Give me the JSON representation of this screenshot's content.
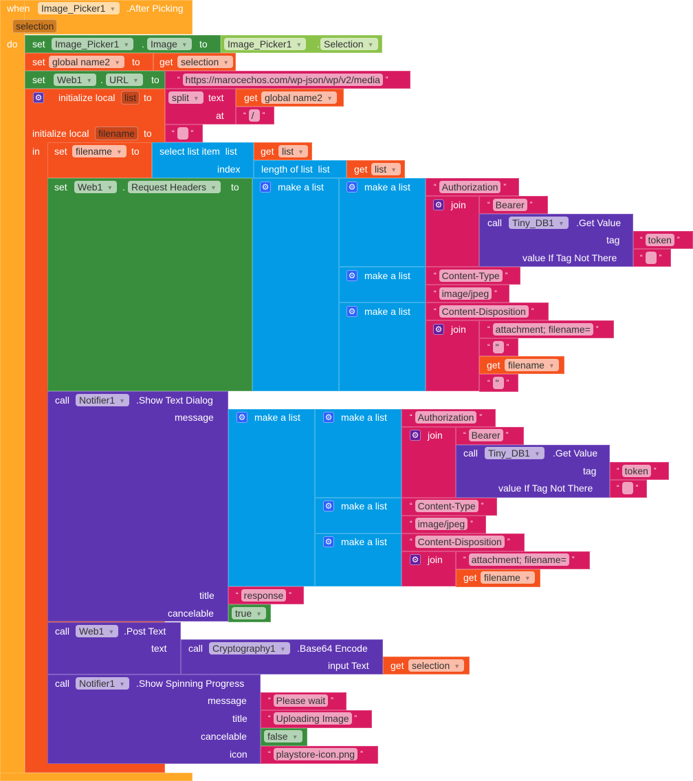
{
  "colors": {
    "event": "#FFA726",
    "variable": "#F4511E",
    "component_set": "#388E3C",
    "component_get": "#8BC34A",
    "text": "#D81B60",
    "list": "#039BE5",
    "call": "#5E35B1"
  },
  "kw": {
    "when": "when",
    "do": "do",
    "set": "set",
    "to": "to",
    "get": "get",
    "call": "call",
    "dot": ".",
    "in": "in",
    "init_local": "initialize local",
    "split": "split",
    "text": "text",
    "at": "at",
    "select_list_item": "select list item  list",
    "index": "index",
    "length_of_list": "length of list  list",
    "make_list": "make a list",
    "join": "join",
    "get_value": ".Get Value",
    "tag": "tag",
    "value_if": "value If Tag Not There",
    "message": "message",
    "title": "title",
    "cancelable": "cancelable",
    "icon": "icon",
    "input_text": "input Text"
  },
  "event": {
    "component": "Image_Picker1",
    "name": ".After Picking",
    "param": "selection"
  },
  "set_image": {
    "component": "Image_Picker1",
    "property": "Image",
    "value_component": "Image_Picker1",
    "value_property": "Selection"
  },
  "set_global": {
    "variable": "global name2",
    "get_variable": "selection"
  },
  "set_url": {
    "component": "Web1",
    "property": "URL",
    "value": "https://marocechos.com/wp-json/wp/v2/media"
  },
  "init_list": {
    "name": "list",
    "get_variable": "global name2",
    "separator": "/"
  },
  "init_filename": {
    "name": "filename",
    "value": ""
  },
  "set_filename": {
    "variable": "filename",
    "list_var": "list",
    "list_var2": "list"
  },
  "set_headers": {
    "component": "Web1",
    "property": "Request Headers"
  },
  "headers": {
    "auth_key": "Authorization",
    "bearer": "Bearer",
    "tinydb": "Tiny_DB1",
    "tag": "token",
    "default": "",
    "ct_key": "Content-Type",
    "ct_value": "image/jpeg",
    "cd_key": "Content-Disposition",
    "cd_prefix": "attachment; filename=",
    "quote1": "\"",
    "filename_var": "filename",
    "quote2": "\""
  },
  "dialog": {
    "component": "Notifier1",
    "method": ".Show Text Dialog",
    "auth_key": "Authorization",
    "bearer": "Bearer",
    "tinydb": "Tiny_DB1",
    "tag": "token",
    "default": "",
    "ct_key": "Content-Type",
    "ct_value": "image/jpeg",
    "cd_key": "Content-Disposition",
    "cd_prefix": "attachment; filename=",
    "filename_var": "filename",
    "title": "response",
    "cancelable": "true"
  },
  "post": {
    "component": "Web1",
    "method": ".Post Text",
    "crypto": "Cryptography1",
    "crypto_method": ".Base64 Encode",
    "get_variable": "selection"
  },
  "spinner": {
    "component": "Notifier1",
    "method": ".Show Spinning Progress",
    "message": "Please wait",
    "title": "Uploading Image",
    "cancelable": "false",
    "icon": "playstore-icon.png"
  }
}
